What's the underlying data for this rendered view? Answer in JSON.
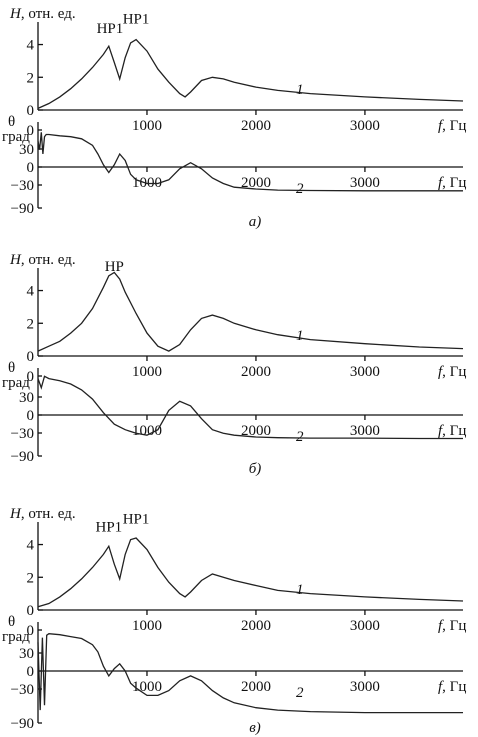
{
  "chart_data": [
    {
      "panel": "a)",
      "top": {
        "type": "line",
        "ylabel_var": "H",
        "ylabel_unit": ", отн. ед.",
        "xlabel_var": "f",
        "xlabel_unit": ", Гц",
        "xlim": [
          0,
          3900
        ],
        "ylim": [
          0,
          5.5
        ],
        "xticks": [
          "1000",
          "2000",
          "3000"
        ],
        "yticks": [
          "0",
          "2",
          "4"
        ],
        "curve_label": "1",
        "annotations": [
          {
            "text": "НР1",
            "x": 660,
            "y": 4.7
          },
          {
            "text": "НР1",
            "x": 900,
            "y": 5.3
          }
        ],
        "x": [
          0,
          100,
          200,
          300,
          400,
          500,
          600,
          650,
          700,
          750,
          800,
          850,
          900,
          1000,
          1100,
          1200,
          1300,
          1350,
          1400,
          1500,
          1600,
          1700,
          1800,
          2000,
          2200,
          2500,
          3000,
          3500,
          3900
        ],
        "y": [
          0.1,
          0.4,
          0.8,
          1.3,
          1.9,
          2.6,
          3.4,
          3.9,
          2.9,
          1.9,
          3.2,
          4.1,
          4.3,
          3.6,
          2.5,
          1.7,
          1.0,
          0.8,
          1.1,
          1.8,
          2.0,
          1.9,
          1.7,
          1.4,
          1.2,
          1.0,
          0.8,
          0.65,
          0.55
        ]
      },
      "bottom": {
        "type": "line",
        "ylabel_var": "θ",
        "ylabel_unit": "град",
        "xlabel_var": "f",
        "xlabel_unit": ", Гц",
        "xlim": [
          0,
          3900
        ],
        "ylim": [
          -90,
          90
        ],
        "xticks": [
          "1000",
          "2000",
          "3000"
        ],
        "yticks": [
          "0",
          "30",
          "0",
          "−30",
          "−90"
        ],
        "curve_label": "2",
        "x": [
          0,
          15,
          30,
          45,
          60,
          75,
          100,
          200,
          300,
          400,
          500,
          550,
          600,
          650,
          700,
          750,
          800,
          850,
          900,
          1000,
          1100,
          1200,
          1300,
          1400,
          1500,
          1600,
          1700,
          1800,
          2000,
          2200,
          2500,
          3000,
          3500,
          3900
        ],
        "y": [
          60,
          40,
          80,
          30,
          70,
          75,
          75,
          72,
          70,
          65,
          50,
          30,
          5,
          -15,
          5,
          30,
          15,
          -20,
          -35,
          -45,
          -45,
          -35,
          -5,
          10,
          -5,
          -30,
          -45,
          -55,
          -60,
          -63,
          -64,
          -65,
          -65,
          -65
        ]
      }
    },
    {
      "panel": "б)",
      "top": {
        "type": "line",
        "ylabel_var": "H",
        "ylabel_unit": ", отн. ед.",
        "xlabel_var": "f",
        "xlabel_unit": ", Гц",
        "xlim": [
          0,
          3900
        ],
        "ylim": [
          0,
          5.5
        ],
        "xticks": [
          "1000",
          "2000",
          "3000"
        ],
        "yticks": [
          "0",
          "2",
          "4"
        ],
        "curve_label": "1",
        "annotations": [
          {
            "text": "НР",
            "x": 700,
            "y": 5.2
          }
        ],
        "x": [
          0,
          100,
          200,
          300,
          400,
          500,
          600,
          650,
          700,
          750,
          800,
          900,
          1000,
          1100,
          1200,
          1300,
          1400,
          1500,
          1600,
          1700,
          1800,
          2000,
          2200,
          2500,
          3000,
          3500,
          3900
        ],
        "y": [
          0.3,
          0.6,
          0.9,
          1.4,
          2.0,
          2.9,
          4.2,
          4.9,
          5.1,
          4.7,
          3.9,
          2.6,
          1.4,
          0.6,
          0.3,
          0.7,
          1.6,
          2.3,
          2.5,
          2.3,
          2.0,
          1.6,
          1.3,
          1.0,
          0.75,
          0.55,
          0.45
        ]
      },
      "bottom": {
        "type": "line",
        "ylabel_var": "θ",
        "ylabel_unit": "град",
        "xlabel_var": "f",
        "xlabel_unit": ", Гц",
        "xlim": [
          0,
          3900
        ],
        "ylim": [
          -90,
          90
        ],
        "xticks": [
          "1000",
          "2000",
          "3000"
        ],
        "yticks": [
          "0",
          "30",
          "0",
          "−30",
          "−90"
        ],
        "curve_label": "2",
        "x": [
          0,
          30,
          60,
          100,
          200,
          300,
          400,
          500,
          600,
          700,
          800,
          900,
          1000,
          1100,
          1200,
          1300,
          1400,
          1500,
          1600,
          1700,
          1800,
          2000,
          2200,
          2500,
          3000,
          3500,
          3900
        ],
        "y": [
          80,
          60,
          85,
          80,
          75,
          68,
          55,
          35,
          5,
          -25,
          -40,
          -50,
          -55,
          -40,
          10,
          30,
          20,
          -10,
          -40,
          -50,
          -55,
          -60,
          -62,
          -63,
          -63,
          -64,
          -64
        ]
      }
    },
    {
      "panel": "в)",
      "top": {
        "type": "line",
        "ylabel_var": "H",
        "ylabel_unit": ", отн. ед.",
        "xlabel_var": "f",
        "xlabel_unit": ", Гц",
        "xlim": [
          0,
          3900
        ],
        "ylim": [
          0,
          5.5
        ],
        "xticks": [
          "1000",
          "2000",
          "3000"
        ],
        "yticks": [
          "0",
          "2",
          "4"
        ],
        "curve_label": "1",
        "annotations": [
          {
            "text": "НР1",
            "x": 650,
            "y": 4.8
          },
          {
            "text": "НР1",
            "x": 900,
            "y": 5.3
          }
        ],
        "x": [
          0,
          100,
          200,
          300,
          400,
          500,
          600,
          650,
          700,
          750,
          800,
          850,
          900,
          1000,
          1100,
          1200,
          1300,
          1350,
          1400,
          1500,
          1600,
          1700,
          1800,
          2000,
          2200,
          2500,
          3000,
          3500,
          3900
        ],
        "y": [
          0.2,
          0.4,
          0.8,
          1.3,
          1.9,
          2.6,
          3.4,
          3.9,
          2.8,
          1.9,
          3.4,
          4.3,
          4.4,
          3.7,
          2.6,
          1.7,
          1.0,
          0.8,
          1.1,
          1.8,
          2.2,
          2.0,
          1.8,
          1.5,
          1.2,
          1.0,
          0.8,
          0.65,
          0.55
        ]
      },
      "bottom": {
        "type": "line",
        "ylabel_var": "θ",
        "ylabel_unit": "град",
        "xlabel_var": "f",
        "xlabel_unit": ", Гц",
        "xlim": [
          0,
          3900
        ],
        "ylim": [
          -90,
          90
        ],
        "xticks": [
          "1000",
          "2000",
          "3000"
        ],
        "yticks": [
          "0",
          "30",
          "0",
          "−30",
          "−90"
        ],
        "curve_label": "2",
        "x": [
          0,
          20,
          40,
          60,
          80,
          100,
          200,
          300,
          400,
          500,
          550,
          600,
          650,
          700,
          750,
          800,
          850,
          900,
          1000,
          1100,
          1200,
          1300,
          1400,
          1500,
          1600,
          1700,
          1800,
          2000,
          2200,
          2500,
          3000,
          3500,
          3900
        ],
        "y": [
          60,
          -80,
          70,
          -70,
          75,
          78,
          76,
          72,
          68,
          55,
          40,
          10,
          -10,
          5,
          15,
          0,
          -25,
          -35,
          -50,
          -50,
          -40,
          -20,
          -10,
          -20,
          -40,
          -55,
          -65,
          -75,
          -80,
          -83,
          -85,
          -85,
          -85
        ]
      }
    }
  ]
}
